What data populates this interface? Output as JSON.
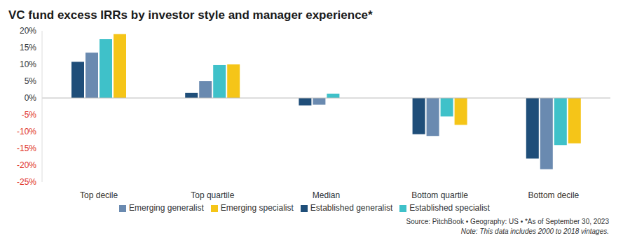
{
  "chart_data": {
    "type": "bar",
    "title": "VC fund excess IRRs by investor style and manager experience*",
    "categories": [
      "Top decile",
      "Top quartile",
      "Median",
      "Bottom quartile",
      "Bottom decile"
    ],
    "series": [
      {
        "name": "Established generalist",
        "color": "#1f4e79",
        "values": [
          10.8,
          1.5,
          -2.2,
          -10.8,
          -18.0
        ]
      },
      {
        "name": "Emerging generalist",
        "color": "#6a8ab0",
        "values": [
          13.5,
          5.0,
          -2.0,
          -11.3,
          -21.2
        ]
      },
      {
        "name": "Established specialist",
        "color": "#3fc1c9",
        "values": [
          17.5,
          9.8,
          1.3,
          -5.5,
          -14.0
        ]
      },
      {
        "name": "Emerging specialist",
        "color": "#f5c518",
        "values": [
          19.0,
          10.0,
          0,
          -8.0,
          -13.5
        ]
      }
    ],
    "ylim": [
      -25,
      20
    ],
    "yticks": [
      {
        "value": -25,
        "label": "-25%"
      },
      {
        "value": -20,
        "label": "-20%"
      },
      {
        "value": -15,
        "label": "-15%"
      },
      {
        "value": -10,
        "label": "-10%"
      },
      {
        "value": -5,
        "label": "-5%"
      },
      {
        "value": 0,
        "label": "0%"
      },
      {
        "value": 5,
        "label": "5%"
      },
      {
        "value": 10,
        "label": "10%"
      },
      {
        "value": 15,
        "label": "15%"
      },
      {
        "value": 20,
        "label": "20%"
      }
    ],
    "grid": false,
    "legend": "bottom",
    "annotations": [
      "Source: PitchBook • Geography: US • *As of September 30, 2023",
      "Note: This data includes 2000 to 2018 vintages."
    ]
  }
}
